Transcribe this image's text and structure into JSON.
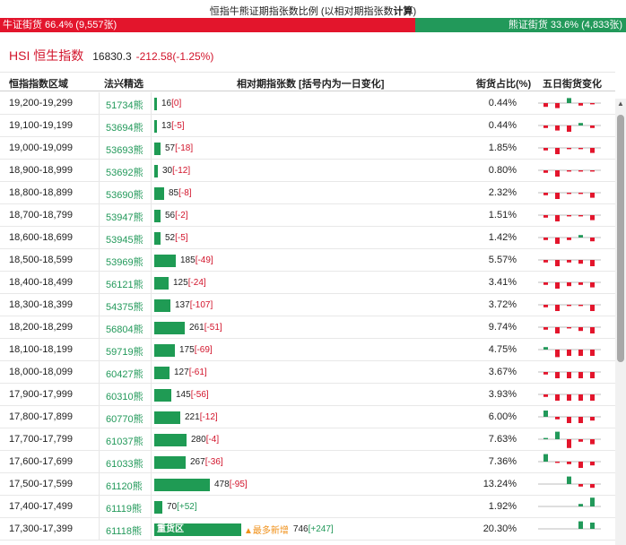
{
  "page_title": {
    "text_normal": "恒指牛熊证期指张数比例 (以相对期指张数",
    "text_bold": "计算",
    "text_end": ")"
  },
  "ratio": {
    "bull_label": "牛证街货 66.4% (9,557张)",
    "bear_label": "熊证街货 33.6% (4,833张)",
    "bull_fraction": 0.664,
    "bear_fraction": 0.336,
    "bull_color": "#e3152c",
    "bear_color": "#22995a"
  },
  "index": {
    "name": "HSI 恒生指数",
    "price": "16830.3",
    "change": "-212.58(-1.25%)"
  },
  "columns": {
    "range": "恒指指数区域",
    "warrant": "法兴精选",
    "outstanding": "相对期指张数 [括号内为一日变化]",
    "ratio": "街货占比(%)",
    "trend": "五日街货变化"
  },
  "heavy_label": "重货区",
  "most_new_label": "▲最多新增",
  "rows": [
    {
      "range": "19,200-19,299",
      "warrant": "51734熊",
      "count": "16",
      "change": "[0]",
      "change_dir": "neg",
      "pct": "0.44%",
      "bar": 16,
      "spark": [
        -3,
        -4,
        4,
        -2,
        -1
      ]
    },
    {
      "range": "19,100-19,199",
      "warrant": "53694熊",
      "count": "13",
      "change": "[-5]",
      "change_dir": "neg",
      "pct": "0.44%",
      "bar": 13,
      "spark": [
        -2,
        -4,
        -5,
        2,
        -2
      ]
    },
    {
      "range": "19,000-19,099",
      "warrant": "53693熊",
      "count": "57",
      "change": "[-18]",
      "change_dir": "neg",
      "pct": "1.85%",
      "bar": 57,
      "spark": [
        -2,
        -5,
        -1,
        -1,
        -4
      ]
    },
    {
      "range": "18,900-18,999",
      "warrant": "53692熊",
      "count": "30",
      "change": "[-12]",
      "change_dir": "neg",
      "pct": "0.80%",
      "bar": 30,
      "spark": [
        -2,
        -5,
        -1,
        -1,
        -1
      ]
    },
    {
      "range": "18,800-18,899",
      "warrant": "53690熊",
      "count": "85",
      "change": "[-8]",
      "change_dir": "neg",
      "pct": "2.32%",
      "bar": 85,
      "spark": [
        -2,
        -5,
        -1,
        -1,
        -4
      ]
    },
    {
      "range": "18,700-18,799",
      "warrant": "53947熊",
      "count": "56",
      "change": "[-2]",
      "change_dir": "neg",
      "pct": "1.51%",
      "bar": 56,
      "spark": [
        -2,
        -5,
        -1,
        -1,
        -4
      ]
    },
    {
      "range": "18,600-18,699",
      "warrant": "53945熊",
      "count": "52",
      "change": "[-5]",
      "change_dir": "neg",
      "pct": "1.42%",
      "bar": 52,
      "spark": [
        -2,
        -5,
        -2,
        2,
        -3
      ]
    },
    {
      "range": "18,500-18,599",
      "warrant": "53969熊",
      "count": "185",
      "change": "[-49]",
      "change_dir": "neg",
      "pct": "5.57%",
      "bar": 185,
      "spark": [
        -2,
        -5,
        -2,
        -3,
        -5
      ]
    },
    {
      "range": "18,400-18,499",
      "warrant": "56121熊",
      "count": "125",
      "change": "[-24]",
      "change_dir": "neg",
      "pct": "3.41%",
      "bar": 125,
      "spark": [
        -2,
        -5,
        -3,
        -2,
        -4
      ]
    },
    {
      "range": "18,300-18,399",
      "warrant": "54375熊",
      "count": "137",
      "change": "[-107]",
      "change_dir": "neg",
      "pct": "3.72%",
      "bar": 137,
      "spark": [
        -2,
        -5,
        -1,
        -1,
        -5
      ]
    },
    {
      "range": "18,200-18,299",
      "warrant": "56804熊",
      "count": "261",
      "change": "[-51]",
      "change_dir": "neg",
      "pct": "9.74%",
      "bar": 261,
      "spark": [
        -2,
        -5,
        -1,
        -3,
        -5
      ]
    },
    {
      "range": "18,100-18,199",
      "warrant": "59719熊",
      "count": "175",
      "change": "[-69]",
      "change_dir": "neg",
      "pct": "4.75%",
      "bar": 175,
      "spark": [
        2,
        -6,
        -5,
        -5,
        -5
      ]
    },
    {
      "range": "18,000-18,099",
      "warrant": "60427熊",
      "count": "127",
      "change": "[-61]",
      "change_dir": "neg",
      "pct": "3.67%",
      "bar": 127,
      "spark": [
        -2,
        -5,
        -5,
        -5,
        -5
      ]
    },
    {
      "range": "17,900-17,999",
      "warrant": "60310熊",
      "count": "145",
      "change": "[-56]",
      "change_dir": "neg",
      "pct": "3.93%",
      "bar": 145,
      "spark": [
        -2,
        -5,
        -5,
        -5,
        -5
      ]
    },
    {
      "range": "17,800-17,899",
      "warrant": "60770熊",
      "count": "221",
      "change": "[-12]",
      "change_dir": "neg",
      "pct": "6.00%",
      "bar": 221,
      "spark": [
        5,
        -2,
        -5,
        -5,
        -3
      ]
    },
    {
      "range": "17,700-17,799",
      "warrant": "61037熊",
      "count": "280",
      "change": "[-4]",
      "change_dir": "neg",
      "pct": "7.63%",
      "bar": 280,
      "spark": [
        1,
        6,
        -7,
        -2,
        -4
      ]
    },
    {
      "range": "17,600-17,699",
      "warrant": "61033熊",
      "count": "267",
      "change": "[-36]",
      "change_dir": "neg",
      "pct": "7.36%",
      "bar": 267,
      "spark": [
        6,
        -1,
        -2,
        -5,
        -3
      ]
    },
    {
      "range": "17,500-17,599",
      "warrant": "61120熊",
      "count": "478",
      "change": "[-95]",
      "change_dir": "neg",
      "pct": "13.24%",
      "bar": 478,
      "spark": [
        0,
        0,
        6,
        -2,
        -3
      ]
    },
    {
      "range": "17,400-17,499",
      "warrant": "61119熊",
      "count": "70",
      "change": "[+52]",
      "change_dir": "pos",
      "pct": "1.92%",
      "bar": 70,
      "spark": [
        0,
        0,
        0,
        2,
        7
      ]
    },
    {
      "range": "17,300-17,399",
      "warrant": "61118熊",
      "count": "746",
      "change": "[+247]",
      "change_dir": "pos",
      "pct": "20.30%",
      "bar": 746,
      "spark": [
        0,
        0,
        0,
        6,
        5
      ],
      "heavy": true,
      "most_new": true
    }
  ]
}
